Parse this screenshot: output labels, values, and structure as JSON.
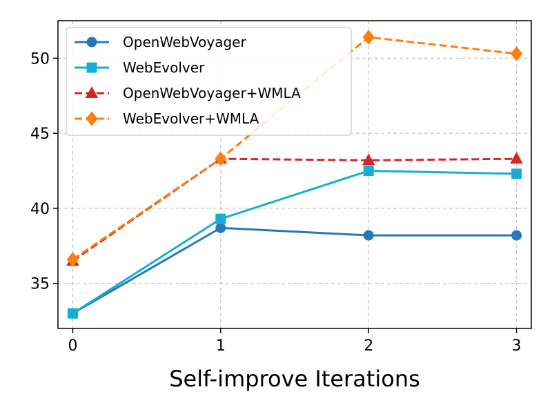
{
  "chart_data": {
    "type": "line",
    "title": "",
    "xlabel": "Self-improve Iterations",
    "ylabel": "",
    "x": [
      0,
      1,
      2,
      3
    ],
    "x_ticks": [
      "0",
      "1",
      "2",
      "3"
    ],
    "y_ticks": [
      "35",
      "40",
      "45",
      "50"
    ],
    "xlim": [
      -0.1,
      3.1
    ],
    "ylim": [
      32,
      52.5
    ],
    "grid": true,
    "legend_position": "top-left",
    "series": [
      {
        "name": "OpenWebVoyager",
        "values": [
          33.0,
          38.7,
          38.2,
          38.2
        ],
        "color": "#2878b5",
        "marker": "circle",
        "dash": "solid"
      },
      {
        "name": "WebEvolver",
        "values": [
          33.0,
          39.3,
          42.5,
          42.3
        ],
        "color": "#17aed6",
        "marker": "square",
        "dash": "solid"
      },
      {
        "name": "OpenWebVoyager+WMLA",
        "values": [
          36.5,
          43.3,
          43.2,
          43.3
        ],
        "color": "#d62728",
        "marker": "triangle",
        "dash": "dashed"
      },
      {
        "name": "WebEvolver+WMLA",
        "values": [
          36.6,
          43.3,
          51.4,
          50.3
        ],
        "color": "#ff7f0e",
        "marker": "diamond",
        "dash": "dashed"
      }
    ]
  }
}
